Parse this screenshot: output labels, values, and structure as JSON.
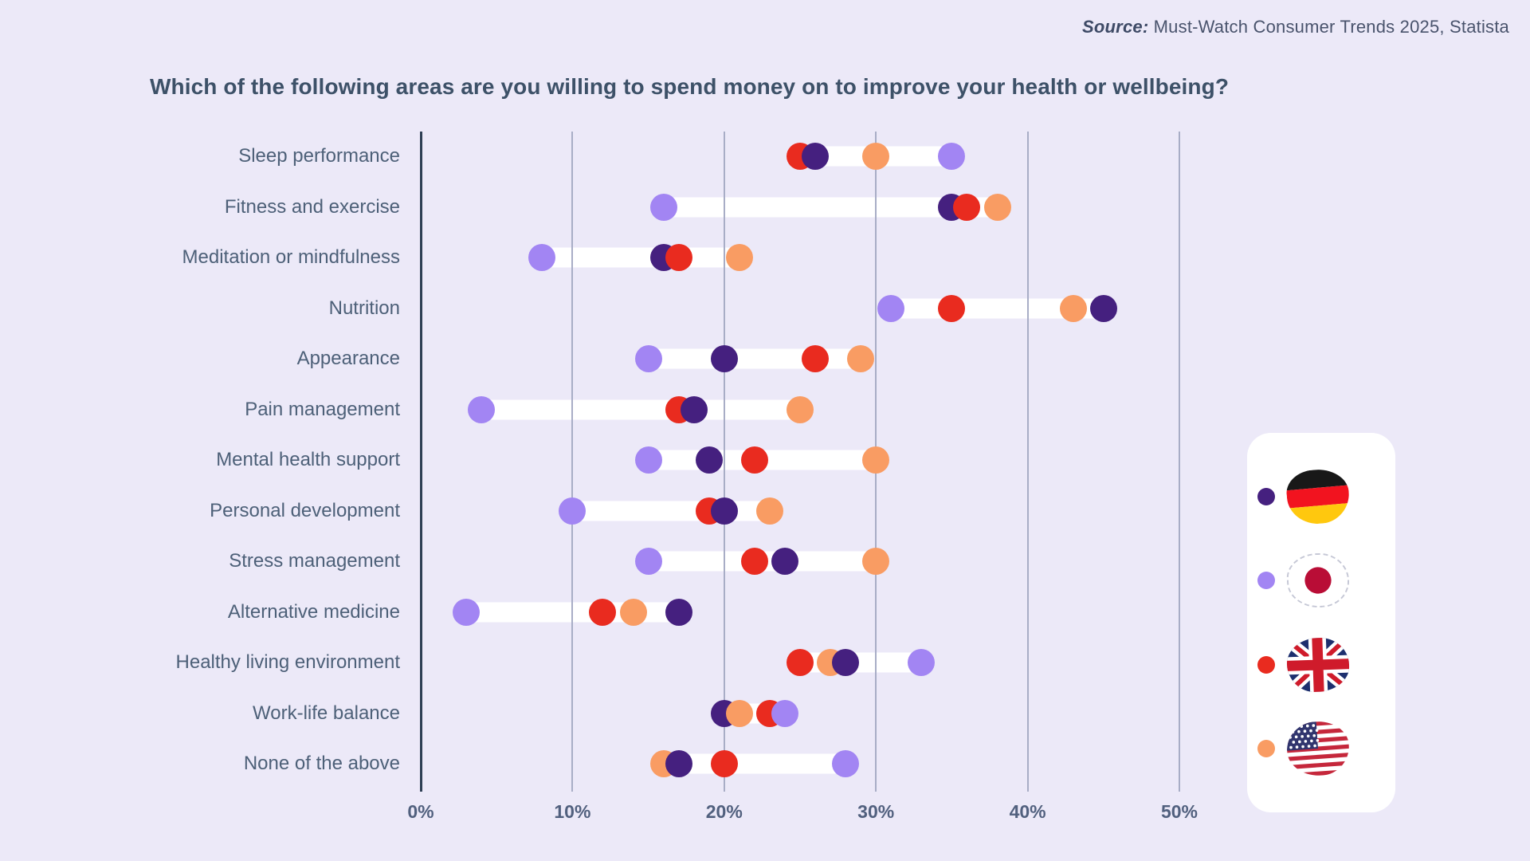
{
  "source": {
    "label": "Source:",
    "text": " Must-Watch Consumer Trends 2025, Statista"
  },
  "title": "Which of the following areas are you willing to spend money on to improve your health or wellbeing?",
  "legend": {
    "entries": [
      {
        "country": "Germany",
        "dot_color": "#45207f",
        "flag_icon": "germany-flag-icon"
      },
      {
        "country": "Japan",
        "dot_color": "#a285f3",
        "flag_icon": "japan-flag-icon"
      },
      {
        "country": "United Kingdom",
        "dot_color": "#e92b1f",
        "flag_icon": "uk-flag-icon"
      },
      {
        "country": "United States",
        "dot_color": "#f99c63",
        "flag_icon": "us-flag-icon"
      }
    ]
  },
  "chart_data": {
    "type": "scatter",
    "subtype": "dumbbell-dot-plot",
    "title": "Which of the following areas are you willing to spend money on to improve your health or wellbeing?",
    "categories": [
      "Sleep performance",
      "Fitness and exercise",
      "Meditation or mindfulness",
      "Nutrition",
      "Appearance",
      "Pain management",
      "Mental health support",
      "Personal development",
      "Stress management",
      "Alternative medicine",
      "Healthy living environment",
      "Work-life balance",
      "None of the above"
    ],
    "series": [
      {
        "name": "Germany",
        "color": "#45207f",
        "values": [
          26,
          35,
          16,
          45,
          20,
          18,
          19,
          20,
          24,
          17,
          28,
          20,
          17
        ]
      },
      {
        "name": "Japan",
        "color": "#a285f3",
        "values": [
          35,
          16,
          8,
          31,
          15,
          4,
          15,
          10,
          15,
          3,
          33,
          24,
          28
        ]
      },
      {
        "name": "United Kingdom",
        "color": "#e92b1f",
        "values": [
          25,
          36,
          17,
          35,
          26,
          17,
          22,
          19,
          22,
          12,
          25,
          23,
          20
        ]
      },
      {
        "name": "United States",
        "color": "#f99c63",
        "values": [
          30,
          38,
          21,
          43,
          29,
          25,
          30,
          23,
          30,
          14,
          27,
          21,
          16
        ]
      }
    ],
    "x_ticks": [
      "0%",
      "10%",
      "20%",
      "30%",
      "40%",
      "50%"
    ],
    "x_tick_values": [
      0,
      10,
      20,
      30,
      40,
      50
    ],
    "xlim": [
      0,
      53
    ],
    "unit": "%",
    "grid": "vertical",
    "legend_position": "right",
    "band_color": "#ffffff",
    "background_color": "#ece9f8"
  }
}
